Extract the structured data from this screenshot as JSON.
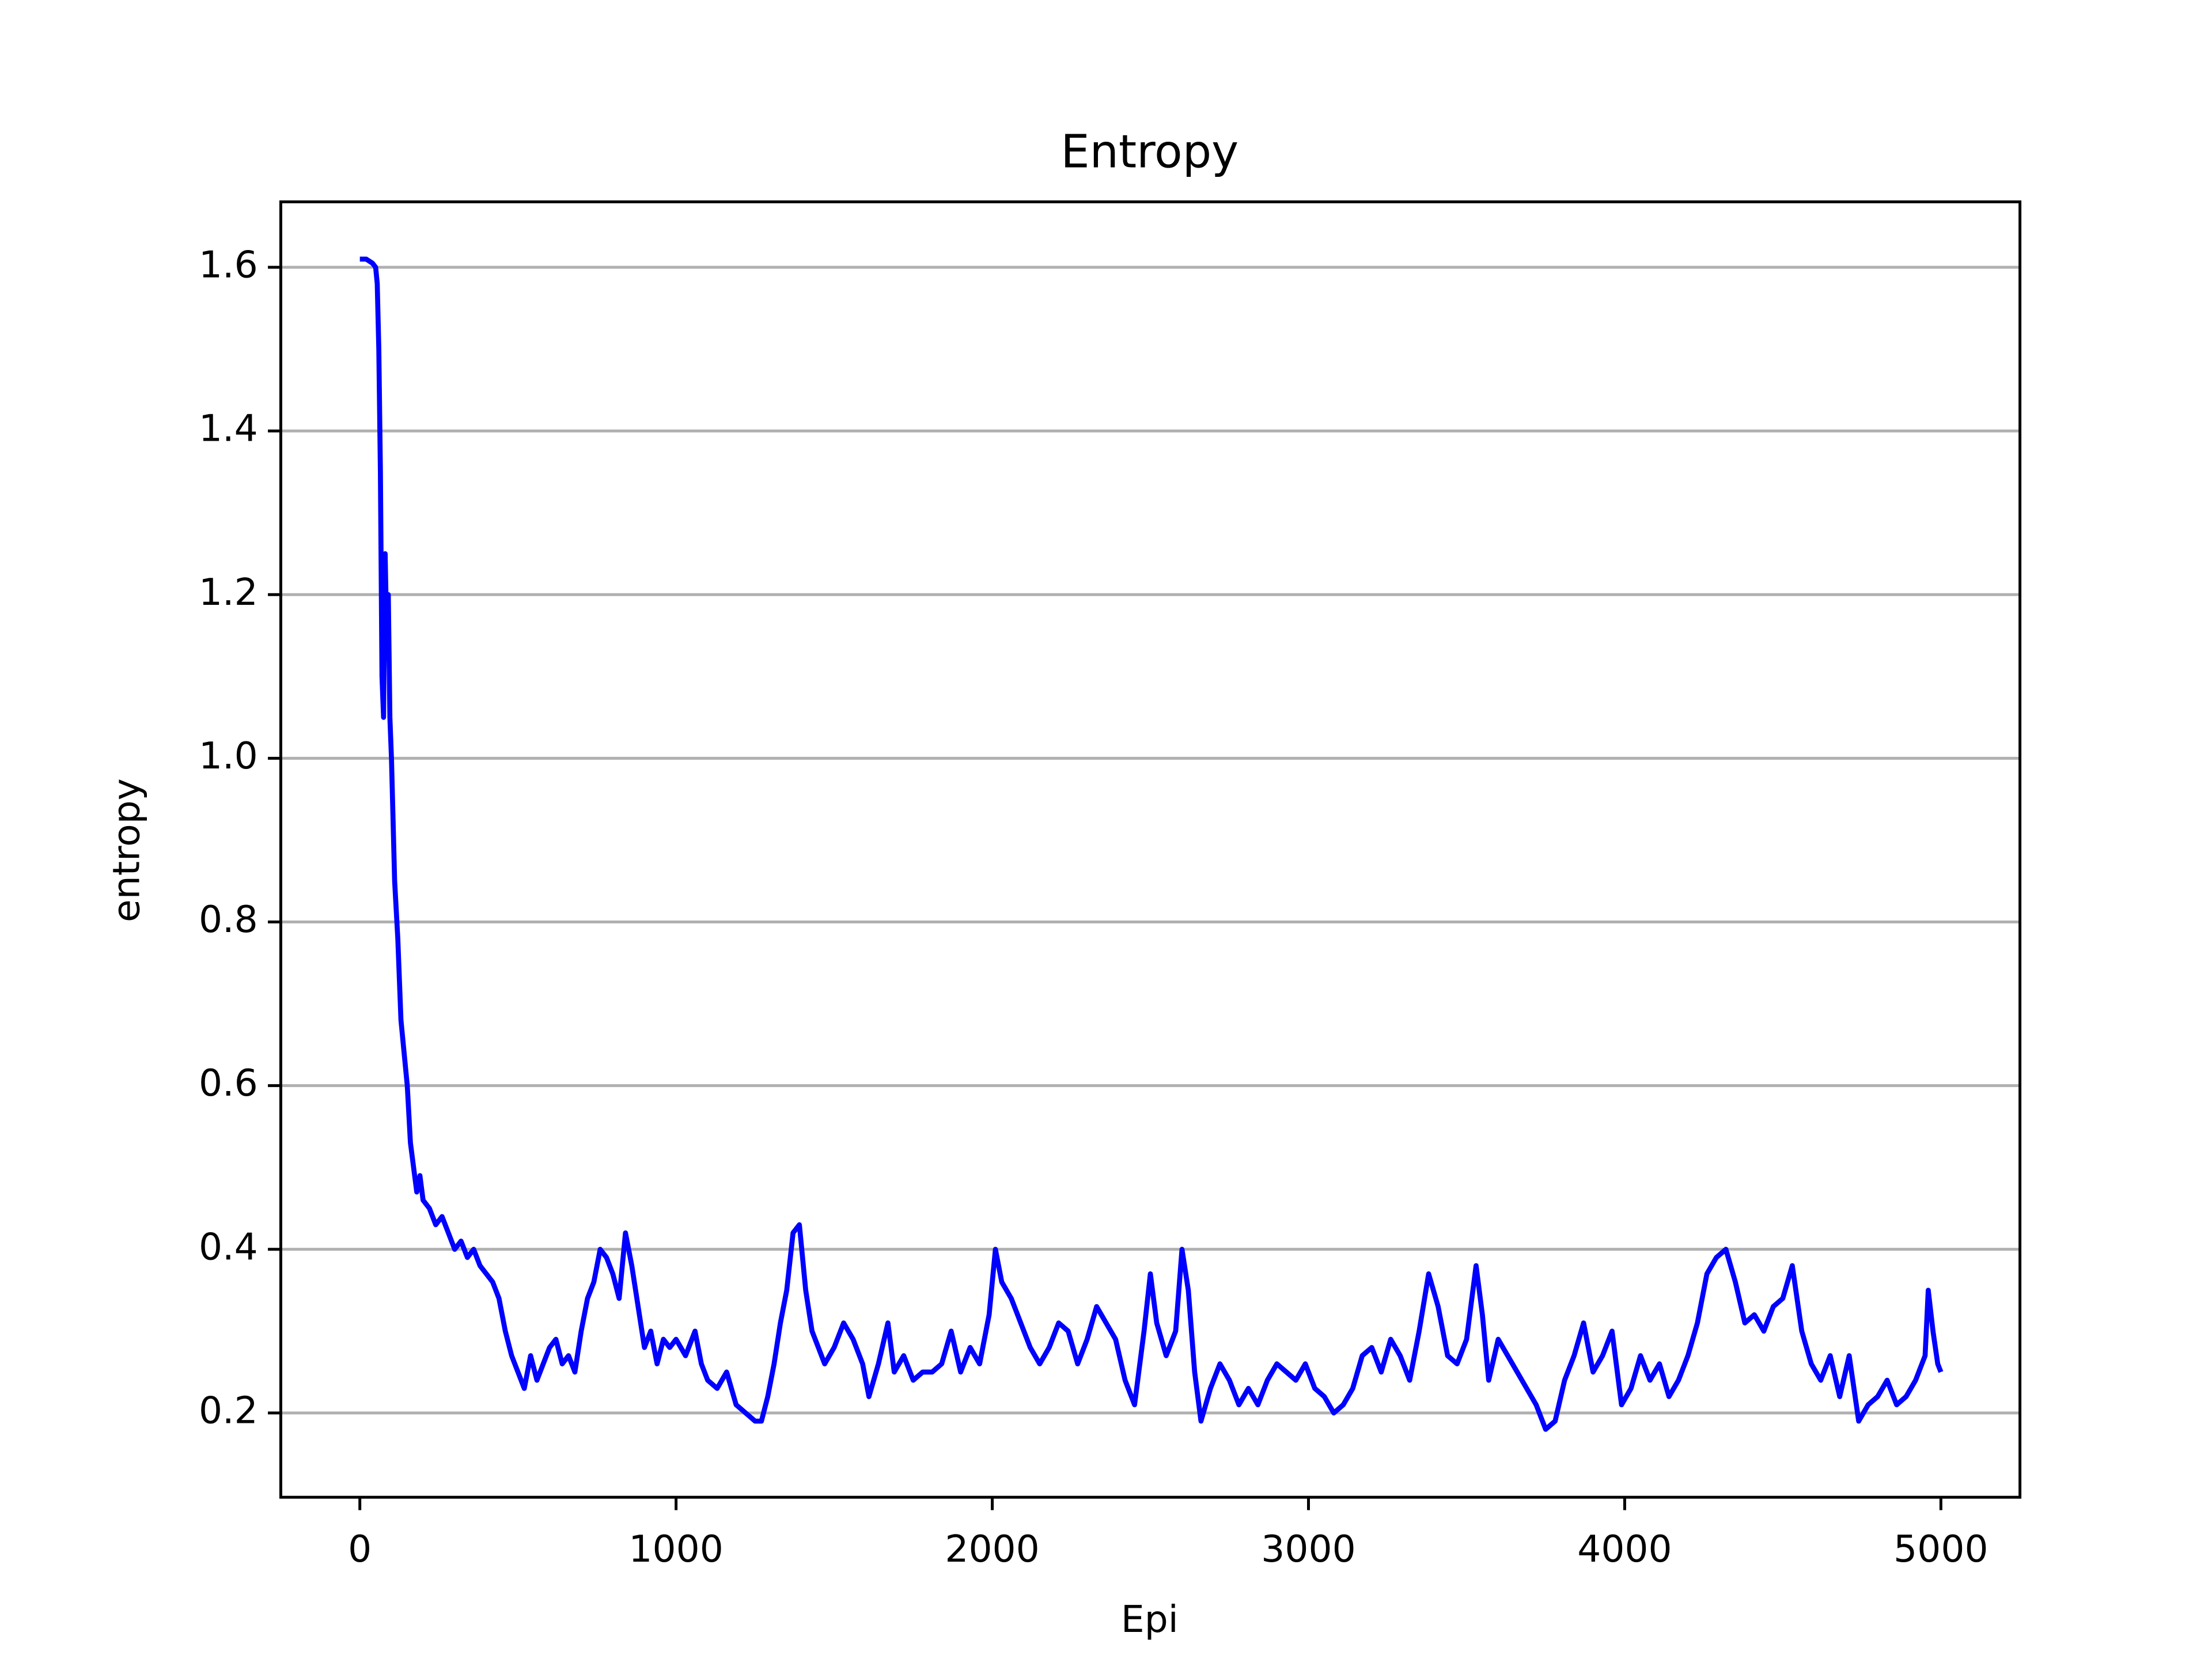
{
  "chart_data": {
    "type": "line",
    "title": "Entropy",
    "x_label": "Epi",
    "y_label": "entropy",
    "xlim": [
      -250,
      5250
    ],
    "ylim": [
      0.097,
      1.68
    ],
    "xticks": [
      0,
      1000,
      2000,
      3000,
      4000,
      5000
    ],
    "yticks": [
      {
        "value": 0.2,
        "label": "0.2"
      },
      {
        "value": 0.4,
        "label": "0.4"
      },
      {
        "value": 0.6,
        "label": "0.6"
      },
      {
        "value": 0.8,
        "label": "0.8"
      },
      {
        "value": 1.0,
        "label": "1.0"
      },
      {
        "value": 1.2,
        "label": "1.2"
      },
      {
        "value": 1.4,
        "label": "1.4"
      },
      {
        "value": 1.6,
        "label": "1.6"
      }
    ],
    "grid": "y",
    "x": [
      0,
      20,
      40,
      50,
      55,
      60,
      65,
      70,
      75,
      80,
      85,
      90,
      95,
      100,
      110,
      120,
      130,
      140,
      150,
      160,
      170,
      180,
      190,
      200,
      220,
      240,
      260,
      280,
      300,
      320,
      340,
      360,
      380,
      400,
      420,
      440,
      460,
      480,
      500,
      520,
      540,
      560,
      580,
      600,
      620,
      640,
      660,
      680,
      700,
      720,
      740,
      760,
      780,
      800,
      820,
      840,
      860,
      880,
      900,
      920,
      940,
      960,
      980,
      1000,
      1030,
      1060,
      1080,
      1100,
      1130,
      1160,
      1190,
      1220,
      1250,
      1270,
      1290,
      1310,
      1330,
      1350,
      1370,
      1390,
      1410,
      1430,
      1450,
      1470,
      1500,
      1530,
      1560,
      1590,
      1610,
      1640,
      1670,
      1690,
      1720,
      1750,
      1780,
      1810,
      1840,
      1870,
      1900,
      1930,
      1960,
      1990,
      2010,
      2030,
      2060,
      2090,
      2120,
      2150,
      2180,
      2210,
      2240,
      2270,
      2300,
      2330,
      2360,
      2390,
      2420,
      2450,
      2480,
      2500,
      2520,
      2550,
      2580,
      2600,
      2620,
      2640,
      2660,
      2690,
      2720,
      2750,
      2780,
      2810,
      2840,
      2870,
      2900,
      2930,
      2960,
      2990,
      3020,
      3050,
      3080,
      3110,
      3140,
      3170,
      3200,
      3230,
      3260,
      3290,
      3320,
      3350,
      3380,
      3410,
      3440,
      3470,
      3500,
      3530,
      3550,
      3570,
      3600,
      3630,
      3660,
      3690,
      3720,
      3750,
      3780,
      3810,
      3840,
      3870,
      3900,
      3930,
      3960,
      3990,
      4020,
      4050,
      4080,
      4110,
      4140,
      4170,
      4200,
      4230,
      4260,
      4290,
      4320,
      4350,
      4380,
      4410,
      4440,
      4470,
      4500,
      4530,
      4560,
      4590,
      4620,
      4650,
      4680,
      4710,
      4740,
      4770,
      4800,
      4830,
      4860,
      4890,
      4920,
      4950,
      4960,
      4975,
      4990,
      5000
    ],
    "series": [
      {
        "name": "entropy",
        "color": "#0000ff",
        "values": [
          1.61,
          1.61,
          1.605,
          1.6,
          1.58,
          1.5,
          1.35,
          1.1,
          1.05,
          1.25,
          1.15,
          1.2,
          1.05,
          1.0,
          0.85,
          0.78,
          0.68,
          0.64,
          0.6,
          0.53,
          0.5,
          0.47,
          0.49,
          0.46,
          0.45,
          0.43,
          0.44,
          0.42,
          0.4,
          0.41,
          0.39,
          0.4,
          0.38,
          0.37,
          0.36,
          0.34,
          0.3,
          0.27,
          0.25,
          0.23,
          0.27,
          0.24,
          0.26,
          0.28,
          0.29,
          0.26,
          0.27,
          0.25,
          0.3,
          0.34,
          0.36,
          0.4,
          0.39,
          0.37,
          0.34,
          0.42,
          0.38,
          0.33,
          0.28,
          0.3,
          0.26,
          0.29,
          0.28,
          0.29,
          0.27,
          0.3,
          0.26,
          0.24,
          0.23,
          0.25,
          0.21,
          0.2,
          0.19,
          0.19,
          0.22,
          0.26,
          0.31,
          0.35,
          0.42,
          0.43,
          0.35,
          0.3,
          0.28,
          0.26,
          0.28,
          0.31,
          0.29,
          0.26,
          0.22,
          0.26,
          0.31,
          0.25,
          0.27,
          0.24,
          0.25,
          0.25,
          0.26,
          0.3,
          0.25,
          0.28,
          0.26,
          0.32,
          0.4,
          0.36,
          0.34,
          0.31,
          0.28,
          0.26,
          0.28,
          0.31,
          0.3,
          0.26,
          0.29,
          0.33,
          0.31,
          0.29,
          0.24,
          0.21,
          0.3,
          0.37,
          0.31,
          0.27,
          0.3,
          0.4,
          0.35,
          0.25,
          0.19,
          0.23,
          0.26,
          0.24,
          0.21,
          0.23,
          0.21,
          0.24,
          0.26,
          0.25,
          0.24,
          0.26,
          0.23,
          0.22,
          0.2,
          0.21,
          0.23,
          0.27,
          0.28,
          0.25,
          0.29,
          0.27,
          0.24,
          0.3,
          0.37,
          0.33,
          0.27,
          0.26,
          0.29,
          0.38,
          0.32,
          0.24,
          0.29,
          0.27,
          0.25,
          0.23,
          0.21,
          0.18,
          0.19,
          0.24,
          0.27,
          0.31,
          0.25,
          0.27,
          0.3,
          0.21,
          0.23,
          0.27,
          0.24,
          0.26,
          0.22,
          0.24,
          0.27,
          0.31,
          0.37,
          0.39,
          0.4,
          0.36,
          0.31,
          0.32,
          0.3,
          0.33,
          0.34,
          0.38,
          0.3,
          0.26,
          0.24,
          0.27,
          0.22,
          0.27,
          0.19,
          0.21,
          0.22,
          0.24,
          0.21,
          0.22,
          0.24,
          0.27,
          0.35,
          0.3,
          0.26,
          0.25
        ]
      }
    ]
  }
}
